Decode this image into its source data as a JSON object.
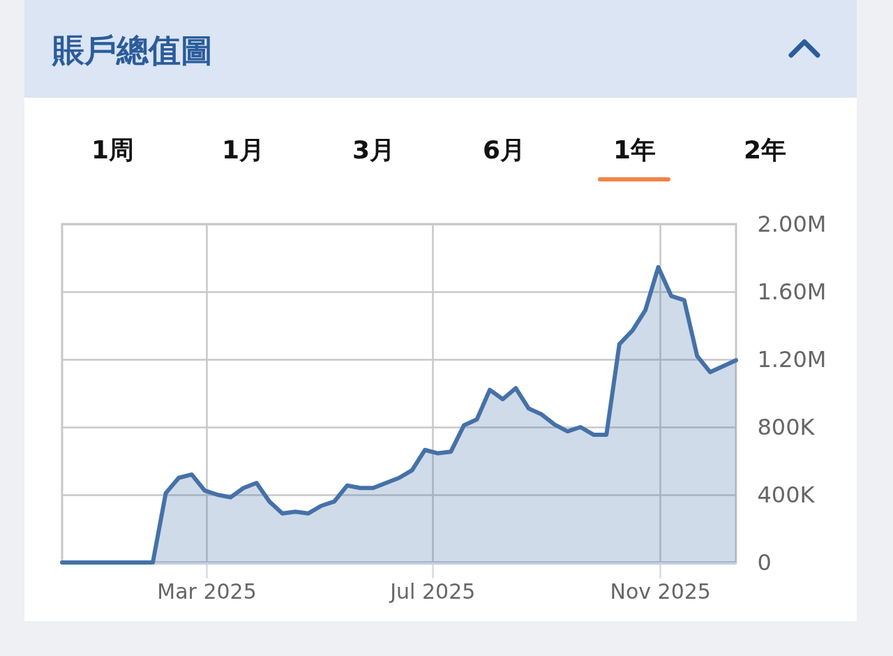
{
  "chart_data": {
    "type": "area",
    "title": "賬戶總值圖",
    "annotations": [
      "1周",
      "1月",
      "3月",
      "6月",
      "1年",
      "2年"
    ],
    "x": [
      "2024-12-13",
      "2024-12-20",
      "2024-12-27",
      "2025-01-03",
      "2025-01-10",
      "2025-01-17",
      "2025-01-24",
      "2025-01-31",
      "2025-02-07",
      "2025-02-14",
      "2025-02-21",
      "2025-02-28",
      "2025-03-07",
      "2025-03-14",
      "2025-03-21",
      "2025-03-28",
      "2025-04-04",
      "2025-04-11",
      "2025-04-18",
      "2025-04-25",
      "2025-05-02",
      "2025-05-09",
      "2025-05-16",
      "2025-05-23",
      "2025-05-30",
      "2025-06-06",
      "2025-06-13",
      "2025-06-20",
      "2025-06-27",
      "2025-07-04",
      "2025-07-11",
      "2025-07-18",
      "2025-07-25",
      "2025-08-01",
      "2025-08-08",
      "2025-08-15",
      "2025-08-22",
      "2025-08-29",
      "2025-09-05",
      "2025-09-12",
      "2025-09-19",
      "2025-09-26",
      "2025-10-03",
      "2025-10-10",
      "2025-10-17",
      "2025-10-24",
      "2025-10-31",
      "2025-11-07",
      "2025-11-14",
      "2025-11-21",
      "2025-11-28",
      "2025-12-12"
    ],
    "series": [
      {
        "color": "#4571a8",
        "values": [
          0,
          0,
          0,
          0,
          0,
          0,
          0,
          0,
          410000,
          500000,
          520000,
          425000,
          400000,
          385000,
          440000,
          470000,
          360000,
          290000,
          300000,
          290000,
          335000,
          360000,
          455000,
          440000,
          440000,
          470000,
          500000,
          545000,
          665000,
          645000,
          655000,
          810000,
          845000,
          1020000,
          965000,
          1030000,
          910000,
          875000,
          815000,
          775000,
          800000,
          755000,
          755000,
          1290000,
          1370000,
          1490000,
          1745000,
          1575000,
          1550000,
          1220000,
          1125000,
          1195000
        ]
      }
    ],
    "xlim": [
      "2024-12-13",
      "2025-12-12"
    ],
    "xticks": [
      {
        "value": "2025-03-01",
        "label": "Mar 2025"
      },
      {
        "value": "2025-07-01",
        "label": "Jul 2025"
      },
      {
        "value": "2025-11-01",
        "label": "Nov 2025"
      }
    ],
    "ylim": [
      0,
      2000000
    ],
    "yticks": [
      0,
      {
        "value": 400000,
        "label": "400K"
      },
      {
        "value": 800000,
        "label": "800K"
      },
      {
        "value": 1200000,
        "label": "1.20M"
      },
      {
        "value": 1600000,
        "label": "1.60M"
      },
      {
        "value": 2000000,
        "label": "2.00M"
      }
    ],
    "grid": true
  }
}
